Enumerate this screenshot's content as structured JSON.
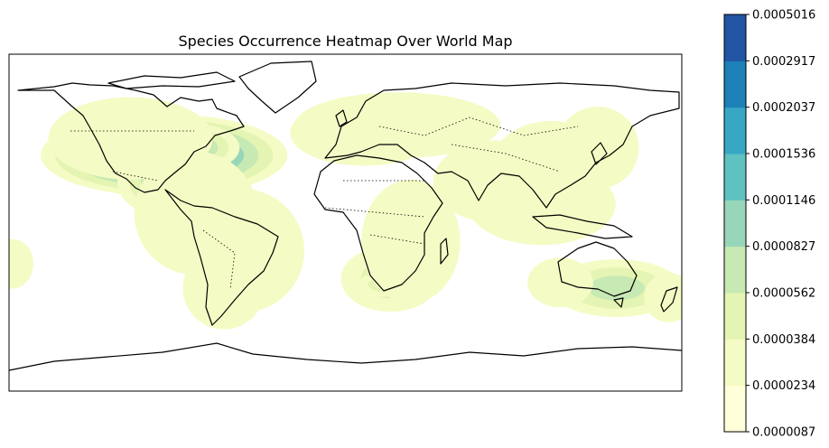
{
  "title": "Species Occurrence Heatmap Over World Map",
  "chart_data": {
    "type": "heatmap",
    "title": "Species Occurrence Heatmap Over World Map",
    "projection": "PlateCarree",
    "xlim": [
      -180,
      180
    ],
    "ylim": [
      -90,
      90
    ],
    "colormap": "YlGnBu",
    "colorbar": {
      "levels": [
        "0.0000087",
        "0.0000234",
        "0.0000384",
        "0.0000562",
        "0.0000827",
        "0.0001146",
        "0.0001536",
        "0.0002037",
        "0.0002917",
        "0.0005016"
      ],
      "colors": [
        "#ffffd9",
        "#f5fbc4",
        "#e4f4b2",
        "#c7e9b4",
        "#98d6b9",
        "#5fc1c0",
        "#37a7c4",
        "#1d80b8",
        "#2155a3"
      ],
      "placement": "right"
    },
    "hotspots": [
      {
        "lon": -97,
        "lat": 36,
        "sx": 30,
        "sy": 10,
        "weight": 1.0
      },
      {
        "lon": -83,
        "lat": 40,
        "sx": 12,
        "sy": 6,
        "weight": 0.45
      },
      {
        "lon": -100,
        "lat": 22,
        "sx": 10,
        "sy": 8,
        "weight": 0.35
      },
      {
        "lon": -115,
        "lat": 45,
        "sx": 20,
        "sy": 10,
        "weight": 0.18
      },
      {
        "lon": -80,
        "lat": 5,
        "sx": 15,
        "sy": 15,
        "weight": 0.15
      },
      {
        "lon": -55,
        "lat": -15,
        "sx": 15,
        "sy": 15,
        "weight": 0.08
      },
      {
        "lon": -65,
        "lat": -35,
        "sx": 10,
        "sy": 10,
        "weight": 0.07
      },
      {
        "lon": 10,
        "lat": 48,
        "sx": 18,
        "sy": 8,
        "weight": 0.12
      },
      {
        "lon": 28,
        "lat": 52,
        "sx": 25,
        "sy": 8,
        "weight": 0.1
      },
      {
        "lon": 24,
        "lat": -30,
        "sx": 12,
        "sy": 8,
        "weight": 0.22
      },
      {
        "lon": 20,
        "lat": -33,
        "sx": 6,
        "sy": 3,
        "weight": 0.25
      },
      {
        "lon": 35,
        "lat": -10,
        "sx": 12,
        "sy": 15,
        "weight": 0.08
      },
      {
        "lon": 80,
        "lat": 22,
        "sx": 15,
        "sy": 10,
        "weight": 0.1
      },
      {
        "lon": 110,
        "lat": 28,
        "sx": 15,
        "sy": 12,
        "weight": 0.1
      },
      {
        "lon": 135,
        "lat": 40,
        "sx": 10,
        "sy": 10,
        "weight": 0.07
      },
      {
        "lon": 105,
        "lat": 10,
        "sx": 18,
        "sy": 10,
        "weight": 0.07
      },
      {
        "lon": 145,
        "lat": -35,
        "sx": 16,
        "sy": 7,
        "weight": 0.4
      },
      {
        "lon": 115,
        "lat": -32,
        "sx": 8,
        "sy": 6,
        "weight": 0.12
      },
      {
        "lon": 173,
        "lat": -40,
        "sx": 6,
        "sy": 6,
        "weight": 0.12
      },
      {
        "lon": -178,
        "lat": -22,
        "sx": 5,
        "sy": 6,
        "weight": 0.07
      }
    ]
  }
}
